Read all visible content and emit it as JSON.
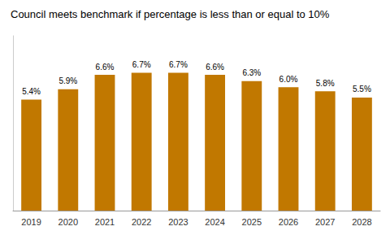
{
  "chart_data": {
    "type": "bar",
    "title": "Council meets benchmark if percentage is less than or equal to 10%",
    "categories": [
      "2019",
      "2020",
      "2021",
      "2022",
      "2023",
      "2024",
      "2025",
      "2026",
      "2027",
      "2028"
    ],
    "values": [
      5.4,
      5.9,
      6.6,
      6.7,
      6.7,
      6.6,
      6.3,
      6.0,
      5.8,
      5.5
    ],
    "value_labels": [
      "5.4%",
      "5.9%",
      "6.6%",
      "6.7%",
      "6.7%",
      "6.6%",
      "6.3%",
      "6.0%",
      "5.8%",
      "5.5%"
    ],
    "data_labels": true,
    "color": "#C17800",
    "ylim": [
      0,
      8.5
    ],
    "grid": false,
    "tick_labels": "x"
  }
}
